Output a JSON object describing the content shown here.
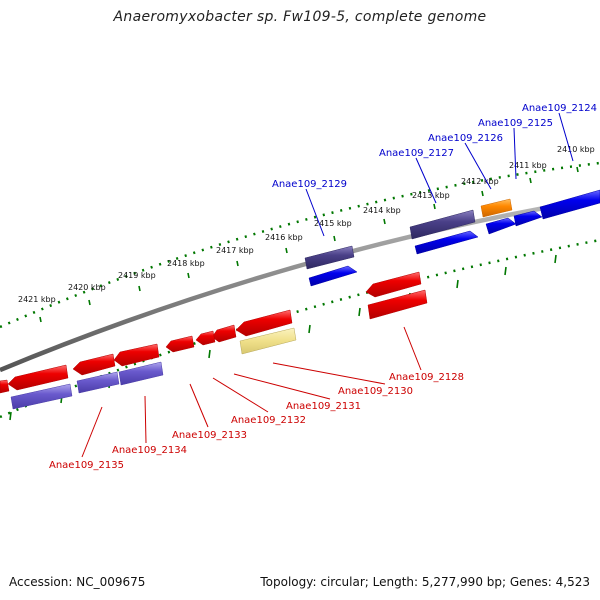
{
  "title": "Anaeromyxobacter sp. Fw109-5, complete genome",
  "footer": {
    "accession": "Accession: NC_009675",
    "stats": "Topology: circular; Length: 5,277,990 bp; Genes: 4,523"
  },
  "colors": {
    "background": "#ffffff",
    "forward_gene": "#0000ee",
    "reverse_gene": "#ee0000",
    "forward_label": "#0000cc",
    "reverse_label": "#cc0000",
    "backbone": "#888888",
    "tick": "#007700",
    "purple_gene": "#5a4fa0",
    "orange_gene": "#ff8800",
    "pseudo_gene": "#f0e08a"
  },
  "kbp_labels": [
    "2421 kbp",
    "2420 kbp",
    "2419 kbp",
    "2418 kbp",
    "2417 kbp",
    "2416 kbp",
    "2415 kbp",
    "2414 kbp",
    "2413 kbp",
    "2412 kbp",
    "2411 kbp",
    "2410 kbp"
  ],
  "forward_gene_labels": [
    "Anae109_2124",
    "Anae109_2125",
    "Anae109_2126",
    "Anae109_2127",
    "Anae109_2129"
  ],
  "reverse_gene_labels": [
    "Anae109_2128",
    "Anae109_2130",
    "Anae109_2131",
    "Anae109_2132",
    "Anae109_2133",
    "Anae109_2134",
    "Anae109_2135"
  ]
}
